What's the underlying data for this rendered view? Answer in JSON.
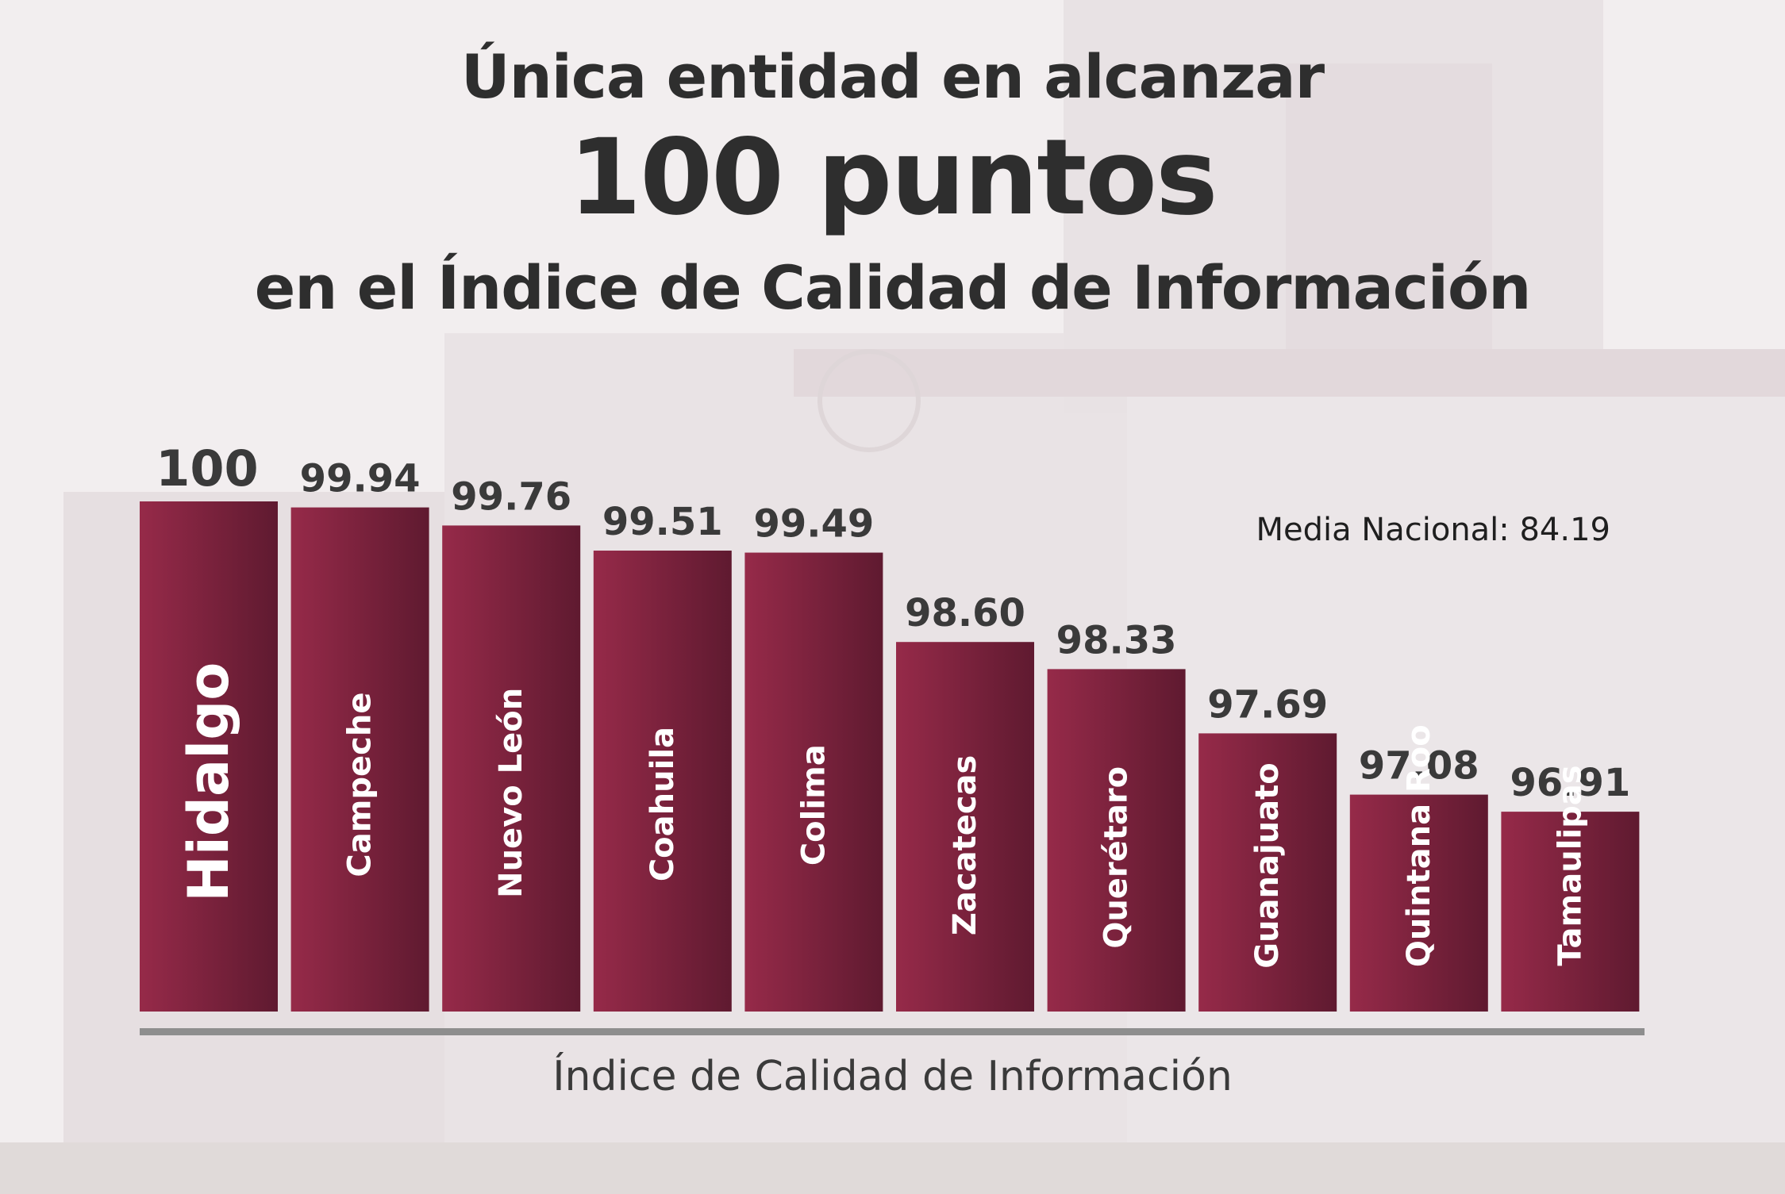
{
  "header": {
    "line1": "Única entidad en alcanzar",
    "line2": "100 puntos",
    "line3": "en el Índice de Calidad de Información"
  },
  "annotation": {
    "mean_label": "Media Nacional: 84.19"
  },
  "colors": {
    "bar_light": "#962a49",
    "bar_dark": "#5f1a30",
    "value_text": "#3a3a3a",
    "axis": "#8e8e8e",
    "title_text": "#2e2e2e"
  },
  "chart_data": {
    "type": "bar",
    "title": "",
    "xlabel": "Índice de Calidad de Información",
    "ylabel": "",
    "categories": [
      "Hidalgo",
      "Campeche",
      "Nuevo León",
      "Coahuila",
      "Colima",
      "Zacatecas",
      "Querétaro",
      "Guanajuato",
      "Quintana Roo",
      "Tamaulipas"
    ],
    "values": [
      100,
      99.94,
      99.76,
      99.51,
      99.49,
      98.6,
      98.33,
      97.69,
      97.08,
      96.91
    ],
    "value_labels": [
      "100",
      "99.94",
      "99.76",
      "99.51",
      "99.49",
      "98.60",
      "98.33",
      "97.69",
      "97.08",
      "96.91"
    ],
    "grid": false,
    "legend": "none",
    "highlight": "Hidalgo"
  }
}
